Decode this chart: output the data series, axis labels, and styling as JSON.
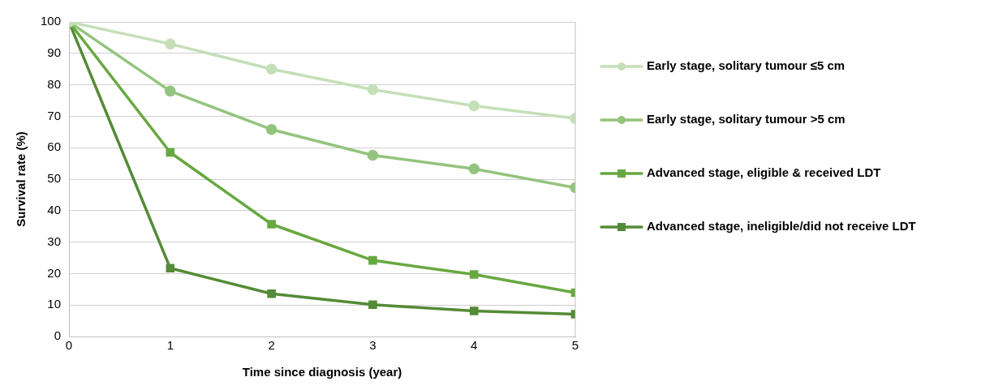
{
  "chart_data": {
    "type": "line",
    "xlabel": "Time since diagnosis (year)",
    "ylabel": "Survival rate (%)",
    "x": [
      0,
      1,
      2,
      3,
      4,
      5
    ],
    "xlim": [
      0,
      5
    ],
    "xticks": [
      0,
      1,
      2,
      3,
      4,
      5
    ],
    "ylim": [
      0,
      100
    ],
    "yticks": [
      0,
      10,
      20,
      30,
      40,
      50,
      60,
      70,
      80,
      90,
      100
    ],
    "grid": "y",
    "legend": "right",
    "series": [
      {
        "name": "Early stage, solitary tumour ≤5 cm",
        "color": "#c5dfb8",
        "marker": "circle",
        "values": [
          100,
          93,
          85,
          78.5,
          73.3,
          69.3
        ]
      },
      {
        "name": "Early stage, solitary tumour >5 cm",
        "color": "#93c47d",
        "marker": "circle",
        "values": [
          100,
          78,
          65.8,
          57.6,
          53.3,
          47.3
        ]
      },
      {
        "name": "Advanced stage, eligible & received LDT",
        "color": "#68a840",
        "marker": "square",
        "values": [
          100,
          58.5,
          35.7,
          24.2,
          19.7,
          13.9
        ]
      },
      {
        "name": "Advanced stage, ineligible/did not receive LDT",
        "color": "#548b36",
        "marker": "square",
        "values": [
          100,
          21.7,
          13.6,
          10.1,
          8.1,
          7.1
        ]
      }
    ]
  }
}
